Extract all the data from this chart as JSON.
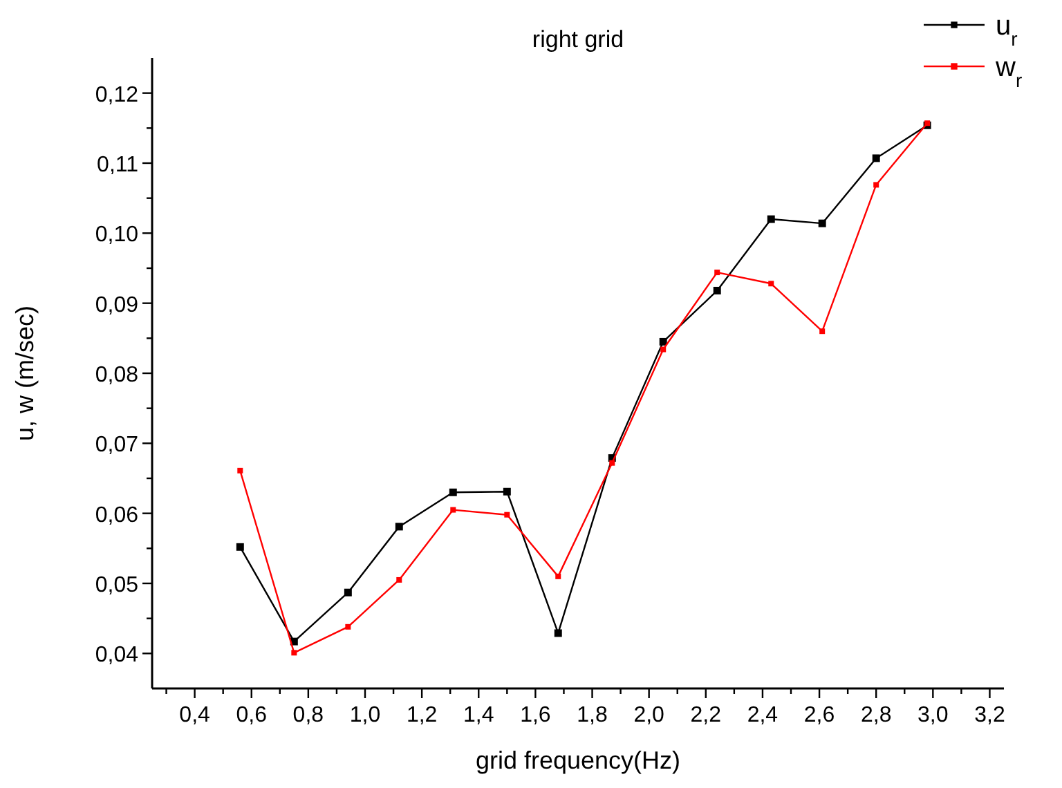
{
  "chart_data": {
    "type": "line",
    "title": "right grid",
    "xlabel": "grid frequency(Hz)",
    "ylabel": "u, w (m/sec)",
    "x": [
      0.56,
      0.75,
      0.94,
      1.12,
      1.31,
      1.5,
      1.68,
      1.87,
      2.05,
      2.24,
      2.43,
      2.61,
      2.8,
      2.98
    ],
    "series": [
      {
        "name": "u$_{r}$",
        "color": "#000000",
        "values": [
          0.0552,
          0.0417,
          0.0487,
          0.0581,
          0.063,
          0.0631,
          0.0429,
          0.0679,
          0.0845,
          0.0918,
          0.102,
          0.1014,
          0.1107,
          0.1154
        ]
      },
      {
        "name": "w$_{r}$",
        "color": "#ff0000",
        "values": [
          0.0661,
          0.0401,
          0.0438,
          0.0505,
          0.0605,
          0.0598,
          0.051,
          0.0672,
          0.0834,
          0.0944,
          0.0928,
          0.086,
          0.1069,
          0.1157
        ]
      }
    ],
    "xlim": [
      0.25,
      3.25
    ],
    "ylim": [
      0.035,
      0.125
    ],
    "xticks": [
      {
        "value": 0.3,
        "label": null
      },
      {
        "value": 0.4,
        "label": "0,4"
      },
      {
        "value": 0.5,
        "label": null
      },
      {
        "value": 0.6,
        "label": "0,6"
      },
      {
        "value": 0.7,
        "label": null
      },
      {
        "value": 0.8,
        "label": "0,8"
      },
      {
        "value": 0.9,
        "label": null
      },
      {
        "value": 1.0,
        "label": "1,0"
      },
      {
        "value": 1.1,
        "label": null
      },
      {
        "value": 1.2,
        "label": "1,2"
      },
      {
        "value": 1.3,
        "label": null
      },
      {
        "value": 1.4,
        "label": "1,4"
      },
      {
        "value": 1.5,
        "label": null
      },
      {
        "value": 1.6,
        "label": "1,6"
      },
      {
        "value": 1.7,
        "label": null
      },
      {
        "value": 1.8,
        "label": "1,8"
      },
      {
        "value": 1.9,
        "label": null
      },
      {
        "value": 2.0,
        "label": "2,0"
      },
      {
        "value": 2.1,
        "label": null
      },
      {
        "value": 2.2,
        "label": "2,2"
      },
      {
        "value": 2.3,
        "label": null
      },
      {
        "value": 2.4,
        "label": "2,4"
      },
      {
        "value": 2.5,
        "label": null
      },
      {
        "value": 2.6,
        "label": "2,6"
      },
      {
        "value": 2.7,
        "label": null
      },
      {
        "value": 2.8,
        "label": "2,8"
      },
      {
        "value": 2.9,
        "label": null
      },
      {
        "value": 3.0,
        "label": "3,0"
      },
      {
        "value": 3.1,
        "label": null
      },
      {
        "value": 3.2,
        "label": "3,2"
      }
    ],
    "yticks": [
      {
        "value": 0.04,
        "label": "0,04"
      },
      {
        "value": 0.045,
        "label": null
      },
      {
        "value": 0.05,
        "label": "0,05"
      },
      {
        "value": 0.055,
        "label": null
      },
      {
        "value": 0.06,
        "label": "0,06"
      },
      {
        "value": 0.065,
        "label": null
      },
      {
        "value": 0.07,
        "label": "0,07"
      },
      {
        "value": 0.075,
        "label": null
      },
      {
        "value": 0.08,
        "label": "0,08"
      },
      {
        "value": 0.085,
        "label": null
      },
      {
        "value": 0.09,
        "label": "0,09"
      },
      {
        "value": 0.095,
        "label": null
      },
      {
        "value": 0.1,
        "label": "0,10"
      },
      {
        "value": 0.105,
        "label": null
      },
      {
        "value": 0.11,
        "label": "0,11"
      },
      {
        "value": 0.115,
        "label": null
      },
      {
        "value": 0.12,
        "label": "0,12"
      }
    ],
    "legend": "top right",
    "marker": "square",
    "line_style": "solid",
    "grid": false
  }
}
